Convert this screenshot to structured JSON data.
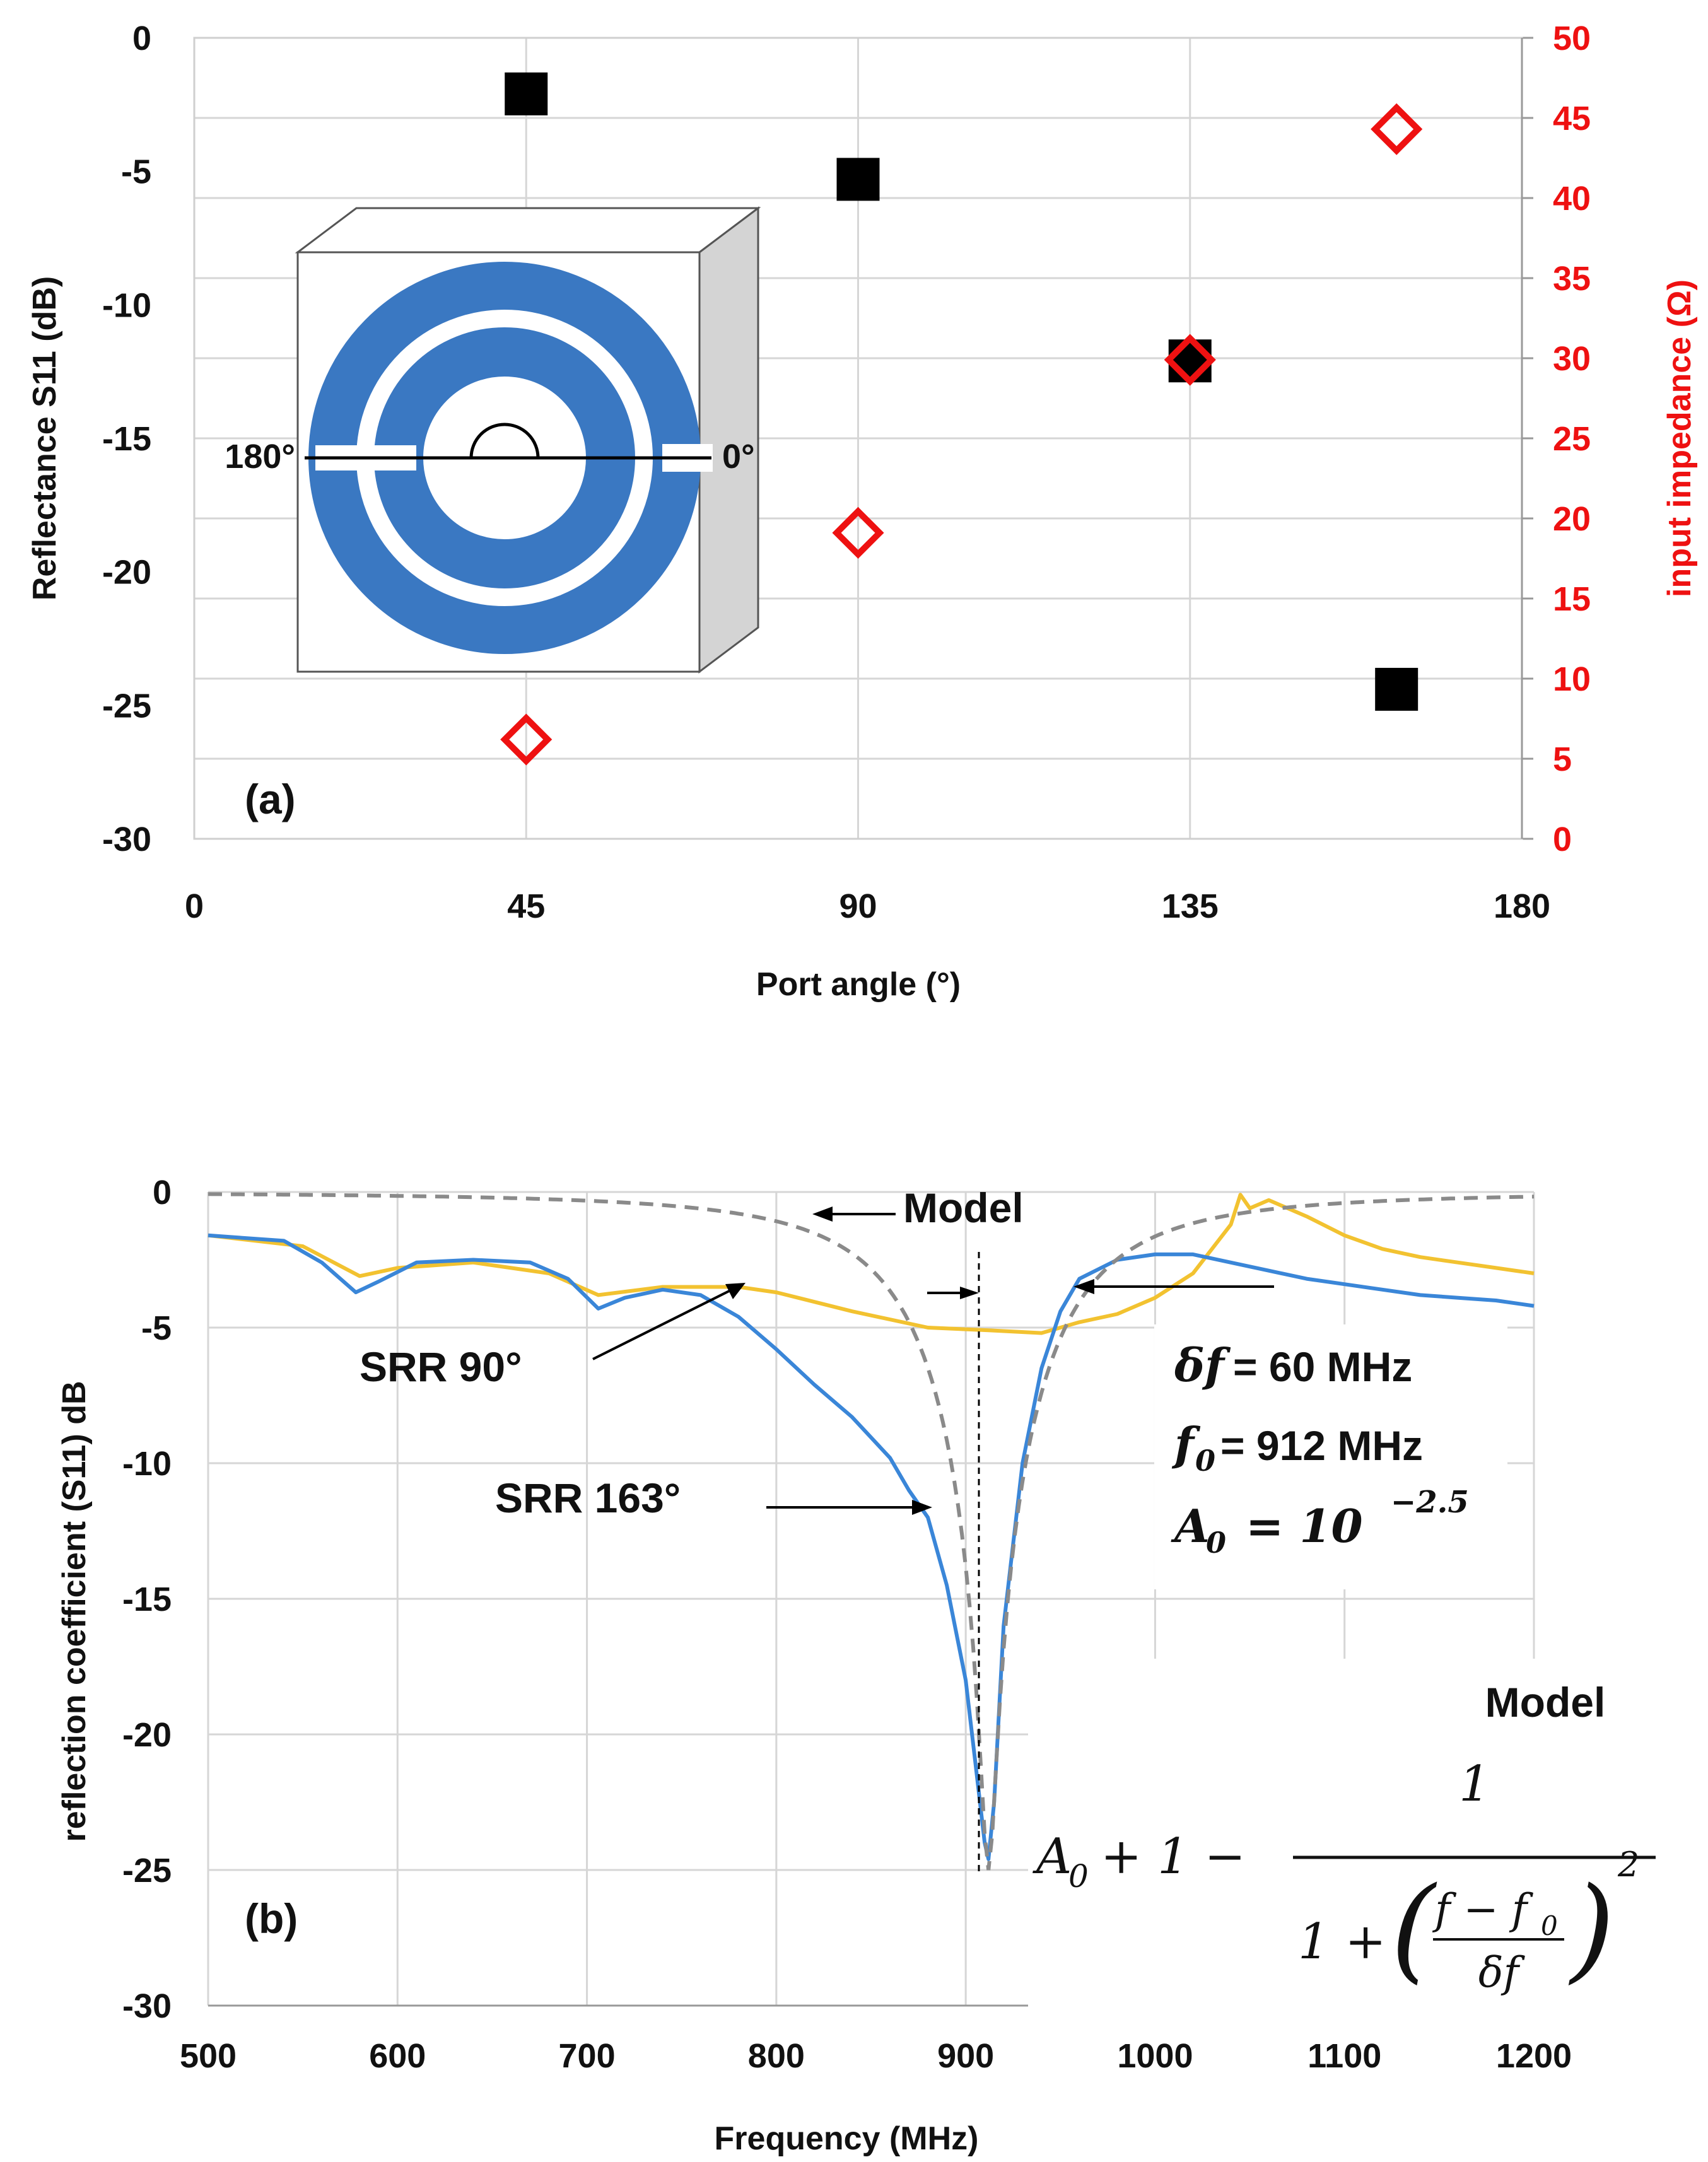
{
  "chart_data": [
    {
      "type": "scatter",
      "panel_label": "(a)",
      "xlabel": "Port angle (°)",
      "ylabel": "Reflectance S11 (dB)",
      "y2label": "input impedance (Ω)",
      "xlim": [
        0,
        180
      ],
      "ylim": [
        -30,
        0
      ],
      "y2lim": [
        0,
        50
      ],
      "xticks": [
        "0",
        "45",
        "90",
        "135",
        "180"
      ],
      "yticks": [
        "0",
        "-5",
        "-10",
        "-15",
        "-20",
        "-25",
        "-30"
      ],
      "y2ticks": [
        "50",
        "45",
        "40",
        "35",
        "30",
        "25",
        "20",
        "15",
        "10",
        "5",
        "0"
      ],
      "grid": true,
      "series": [
        {
          "name": "Reflectance S11",
          "axis": "left",
          "marker": "square",
          "color": "#000000",
          "x": [
            45,
            90,
            135,
            163
          ],
          "y": [
            -2.1,
            -5.3,
            -12.1,
            -24.4
          ]
        },
        {
          "name": "Input impedance",
          "axis": "right",
          "marker": "diamond",
          "color": "#ee1111",
          "x": [
            45,
            90,
            135,
            163
          ],
          "y": [
            6.2,
            19.1,
            29.9,
            44.3
          ]
        }
      ],
      "inset": {
        "description_labels": [
          "180°",
          "0°"
        ],
        "ring_color": "#3a78c2"
      }
    },
    {
      "type": "line",
      "panel_label": "(b)",
      "xlabel": "Frequency (MHz)",
      "ylabel": "reflection coefficient (S11) dB",
      "xlim": [
        500,
        1200
      ],
      "ylim": [
        -30,
        0
      ],
      "xticks": [
        "500",
        "600",
        "700",
        "800",
        "900",
        "1000",
        "1100",
        "1200"
      ],
      "yticks": [
        "0",
        "-5",
        "-10",
        "-15",
        "-20",
        "-25",
        "-30"
      ],
      "grid": true,
      "series": [
        {
          "name": "SRR 163°",
          "color": "#3a86d8",
          "x": [
            500,
            540,
            560,
            578,
            590,
            610,
            640,
            670,
            690,
            706,
            720,
            740,
            760,
            780,
            800,
            820,
            840,
            860,
            870,
            880,
            890,
            900,
            905,
            910,
            912,
            915,
            920,
            930,
            940,
            950,
            960,
            980,
            1000,
            1020,
            1040,
            1060,
            1080,
            1100,
            1120,
            1140,
            1160,
            1180,
            1200
          ],
          "y": [
            -1.6,
            -1.8,
            -2.6,
            -3.7,
            -3.3,
            -2.6,
            -2.5,
            -2.6,
            -3.2,
            -4.3,
            -3.9,
            -3.6,
            -3.8,
            -4.6,
            -5.8,
            -7.1,
            -8.3,
            -9.8,
            -11,
            -12,
            -14.5,
            -18,
            -21,
            -24,
            -24.6,
            -22.5,
            -16,
            -10,
            -6.5,
            -4.4,
            -3.2,
            -2.5,
            -2.3,
            -2.3,
            -2.6,
            -2.9,
            -3.2,
            -3.4,
            -3.6,
            -3.8,
            -3.9,
            -4.0,
            -4.2
          ]
        },
        {
          "name": "SRR 90°",
          "color": "#f2c230",
          "x": [
            500,
            550,
            580,
            600,
            640,
            680,
            706,
            740,
            780,
            800,
            840,
            880,
            912,
            940,
            960,
            980,
            1000,
            1020,
            1040,
            1045,
            1050,
            1060,
            1080,
            1100,
            1120,
            1140,
            1160,
            1180,
            1200
          ],
          "y": [
            -1.6,
            -2.0,
            -3.1,
            -2.8,
            -2.6,
            -3.0,
            -3.8,
            -3.5,
            -3.5,
            -3.7,
            -4.4,
            -5.0,
            -5.1,
            -5.2,
            -4.8,
            -4.5,
            -3.9,
            -3.0,
            -1.2,
            -0.1,
            -0.6,
            -0.3,
            -0.9,
            -1.6,
            -2.1,
            -2.4,
            -2.6,
            -2.8,
            -3.0
          ]
        },
        {
          "name": "Model",
          "color": "#8a8a8a",
          "dashed": true,
          "formula": "A0 + 1 - 1/(1+((f-f0)/δf)^2)",
          "params": {
            "delta_f_MHz": 60,
            "f0_MHz": 912,
            "A0": 0.0031623
          }
        }
      ],
      "annotations": {
        "model_arrow": "Model",
        "srr90": "SRR 90°",
        "srr163": "SRR 163°",
        "delta_f_label": "δf",
        "delta_f_value": "= 60 MHz",
        "f0_label": "f",
        "f0_sub": "0",
        "f0_value": "= 912 MHz",
        "a0_label": "A",
        "a0_sub": "0",
        "a0_eq": "= 10",
        "a0_exp": "−2.5",
        "formula_title": "Model",
        "formula_lhs": "A",
        "formula_lhs_sub": "0",
        "formula_mid": "+ 1 −",
        "formula_num": "1",
        "formula_den_a": "1 +",
        "formula_frac_top": "f − f",
        "formula_frac_top_sub": "0",
        "formula_frac_bot": "δf",
        "formula_exp": "2"
      }
    }
  ]
}
